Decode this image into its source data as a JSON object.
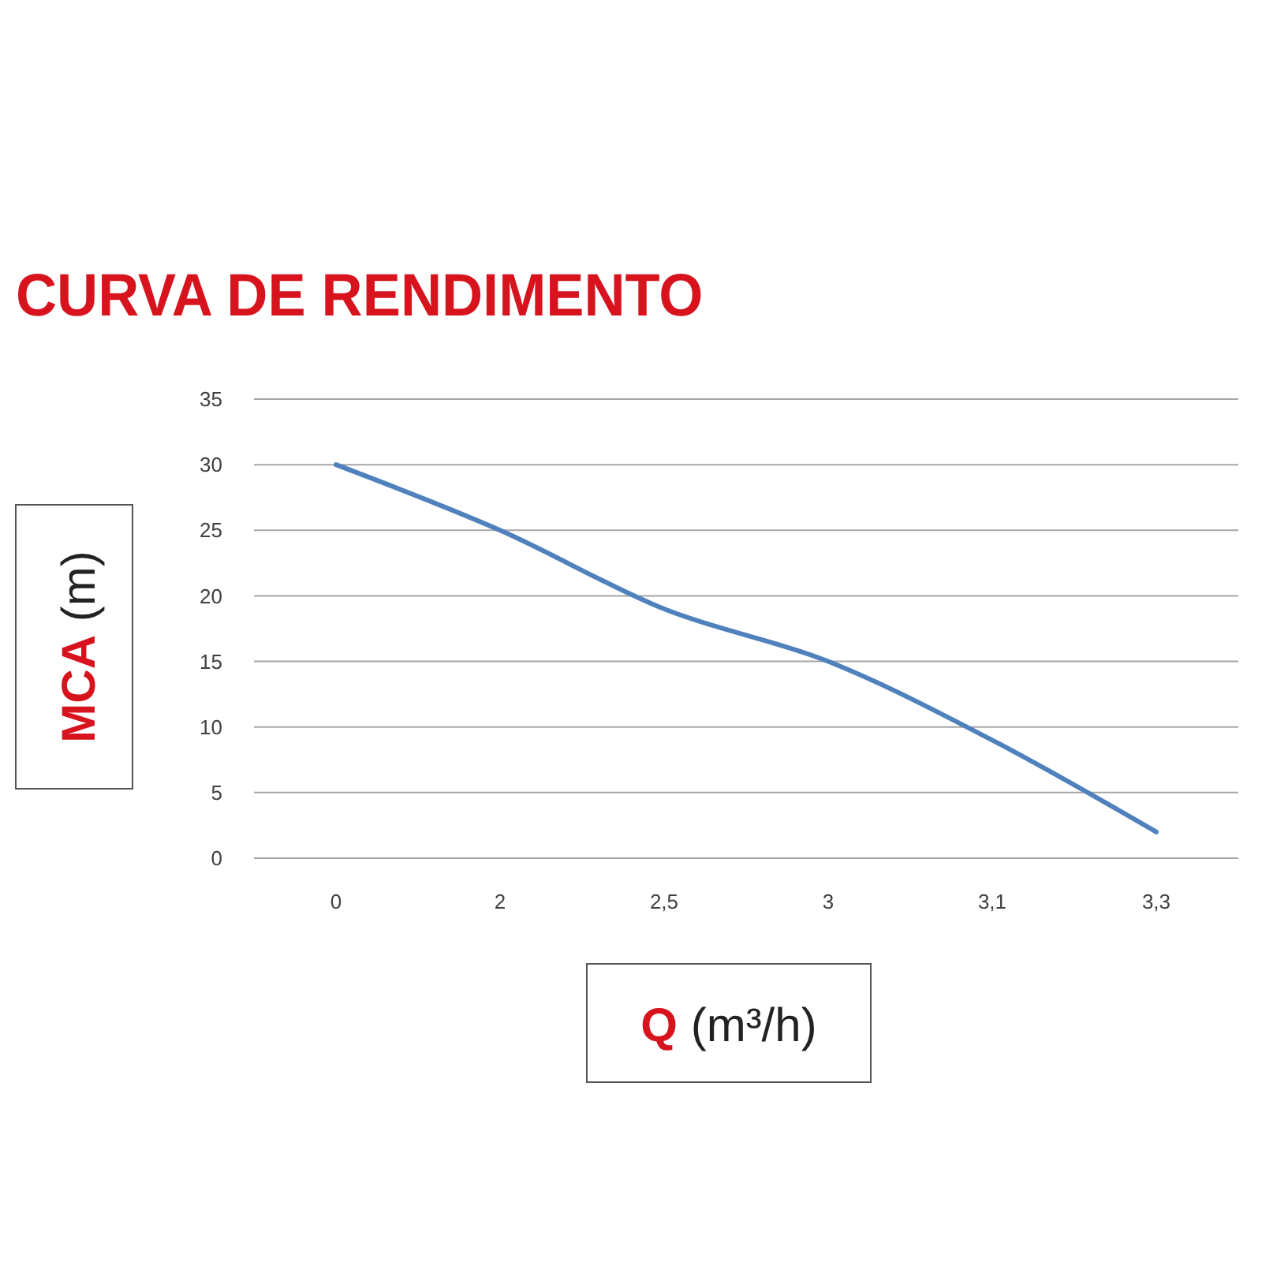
{
  "chart_data": {
    "type": "line",
    "title": "CURVA DE RENDIMENTO",
    "xlabel": "Q (m³/h)",
    "ylabel": "MCA (m)",
    "categories": [
      "0",
      "2",
      "2,5",
      "3",
      "3,1",
      "3,3"
    ],
    "series": [
      {
        "color": "#4f81bd",
        "values": [
          30,
          25,
          19,
          15,
          9,
          2
        ]
      }
    ],
    "ylim": [
      0,
      35
    ],
    "yticks": [
      0,
      5,
      10,
      15,
      20,
      25,
      30,
      35
    ],
    "grid": "y",
    "marker": "none",
    "line_style": "solid"
  }
}
